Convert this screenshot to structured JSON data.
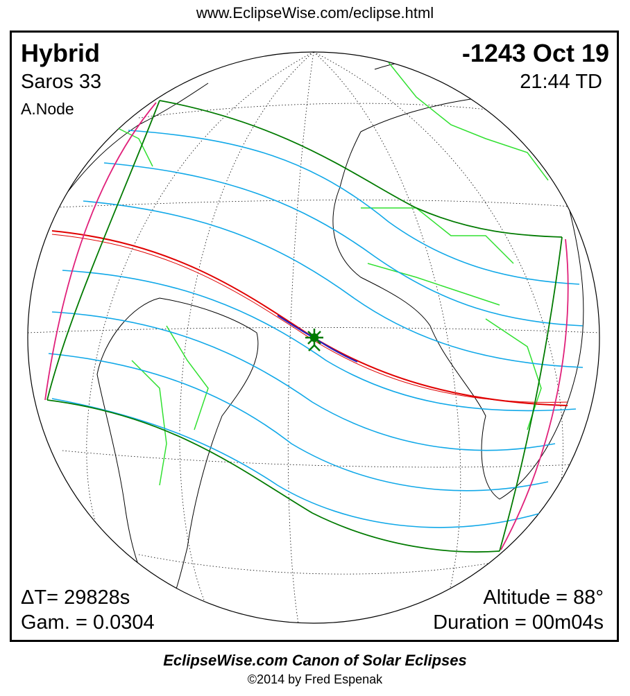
{
  "url": "www.EclipseWise.com/eclipse.html",
  "eclipse": {
    "type": "Hybrid",
    "date": "-1243 Oct 19",
    "saros": "Saros  33",
    "time": "21:44 TD",
    "node": "A.Node",
    "delta_t": "ΔT=  29828s",
    "gamma": "Gam. = 0.0304",
    "altitude": "Altitude = 88°",
    "duration": "Duration = 00m04s"
  },
  "footer": {
    "canon": "EclipseWise.com Canon of Solar Eclipses",
    "copyright": "©2014 by Fred Espenak"
  },
  "colors": {
    "central_line": "#e00000",
    "annular_segment": "#2020c0",
    "penumbral_limits": "#007a00",
    "hourly_lines": "#10a8e8",
    "limb_curves": "#e0207a",
    "borders": "#30e030",
    "coastlines": "#000000"
  }
}
